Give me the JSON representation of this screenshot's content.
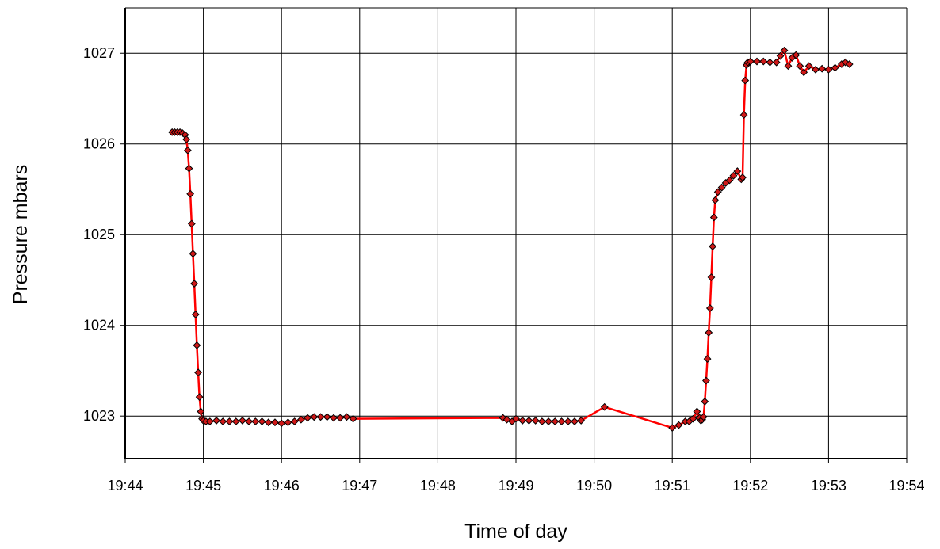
{
  "chart_data": {
    "type": "line",
    "title": "",
    "xlabel": "Time of day",
    "ylabel": "Pressure mbars",
    "xlim": [
      "19:44",
      "19:54"
    ],
    "ylim": [
      1022.53,
      1027.5
    ],
    "x_ticks": [
      "19:44",
      "19:45",
      "19:46",
      "19:47",
      "19:48",
      "19:49",
      "19:50",
      "19:51",
      "19:52",
      "19:53",
      "19:54"
    ],
    "y_ticks": [
      1023,
      1024,
      1025,
      1026,
      1027
    ],
    "grid": true,
    "legend": "none",
    "colors": {
      "line": "#ff0000",
      "marker_fill": "#d01818",
      "marker_edge": "#000000",
      "grid": "#000000"
    },
    "series": [
      {
        "x": [
          "19:44:36",
          "19:44:38",
          "19:44:40",
          "19:44:42",
          "19:44:44",
          "19:44:46",
          "19:44:47",
          "19:44:48",
          "19:44:49",
          "19:44:50",
          "19:44:51",
          "19:44:52",
          "19:44:53",
          "19:44:54",
          "19:44:55",
          "19:44:56",
          "19:44:57",
          "19:44:58",
          "19:44:59",
          "19:45:00",
          "19:45:02",
          "19:45:05",
          "19:45:10",
          "19:45:15",
          "19:45:20",
          "19:45:25",
          "19:45:30",
          "19:45:35",
          "19:45:40",
          "19:45:45",
          "19:45:50",
          "19:45:55",
          "19:46:00",
          "19:46:05",
          "19:46:10",
          "19:46:15",
          "19:46:20",
          "19:46:25",
          "19:46:30",
          "19:46:35",
          "19:46:40",
          "19:46:45",
          "19:46:50",
          "19:46:55",
          "19:48:50",
          "19:48:53",
          "19:48:57",
          "19:49:00",
          "19:49:05",
          "19:49:10",
          "19:49:15",
          "19:49:20",
          "19:49:25",
          "19:49:30",
          "19:49:35",
          "19:49:40",
          "19:49:45",
          "19:49:50",
          "19:50:08",
          "19:51:00",
          "19:51:05",
          "19:51:10",
          "19:51:13",
          "19:51:16",
          "19:51:19",
          "19:51:21",
          "19:51:22",
          "19:51:23",
          "19:51:24",
          "19:51:25",
          "19:51:26",
          "19:51:27",
          "19:51:28",
          "19:51:29",
          "19:51:30",
          "19:51:31",
          "19:51:32",
          "19:51:33",
          "19:51:35",
          "19:51:38",
          "19:51:41",
          "19:51:44",
          "19:51:47",
          "19:51:50",
          "19:51:53",
          "19:51:54",
          "19:51:55",
          "19:51:56",
          "19:51:57",
          "19:51:58",
          "19:52:00",
          "19:52:05",
          "19:52:10",
          "19:52:15",
          "19:52:20",
          "19:52:23",
          "19:52:26",
          "19:52:29",
          "19:52:32",
          "19:52:35",
          "19:52:38",
          "19:52:41",
          "19:52:45",
          "19:52:50",
          "19:52:55",
          "19:53:00",
          "19:53:05",
          "19:53:10",
          "19:53:13",
          "19:53:16"
        ],
        "y": [
          1026.13,
          1026.13,
          1026.13,
          1026.13,
          1026.12,
          1026.1,
          1026.05,
          1025.93,
          1025.73,
          1025.45,
          1025.12,
          1024.79,
          1024.46,
          1024.12,
          1023.78,
          1023.48,
          1023.21,
          1023.05,
          1022.97,
          1022.95,
          1022.94,
          1022.94,
          1022.95,
          1022.94,
          1022.94,
          1022.94,
          1022.95,
          1022.94,
          1022.94,
          1022.94,
          1022.93,
          1022.93,
          1022.92,
          1022.93,
          1022.94,
          1022.96,
          1022.98,
          1022.99,
          1022.99,
          1022.99,
          1022.98,
          1022.98,
          1022.99,
          1022.97,
          1022.98,
          1022.96,
          1022.94,
          1022.97,
          1022.95,
          1022.95,
          1022.95,
          1022.94,
          1022.94,
          1022.94,
          1022.94,
          1022.94,
          1022.94,
          1022.95,
          1023.1,
          1022.87,
          1022.9,
          1022.94,
          1022.94,
          1022.97,
          1023.05,
          1022.98,
          1022.95,
          1022.96,
          1022.99,
          1023.16,
          1023.39,
          1023.63,
          1023.92,
          1024.19,
          1024.53,
          1024.87,
          1025.19,
          1025.38,
          1025.47,
          1025.52,
          1025.57,
          1025.6,
          1025.65,
          1025.7,
          1025.61,
          1025.63,
          1026.32,
          1026.7,
          1026.87,
          1026.9,
          1026.91,
          1026.91,
          1026.91,
          1026.9,
          1026.9,
          1026.97,
          1027.03,
          1026.86,
          1026.95,
          1026.98,
          1026.86,
          1026.79,
          1026.86,
          1026.82,
          1026.83,
          1026.82,
          1026.84,
          1026.88,
          1026.9,
          1026.88
        ]
      }
    ]
  }
}
